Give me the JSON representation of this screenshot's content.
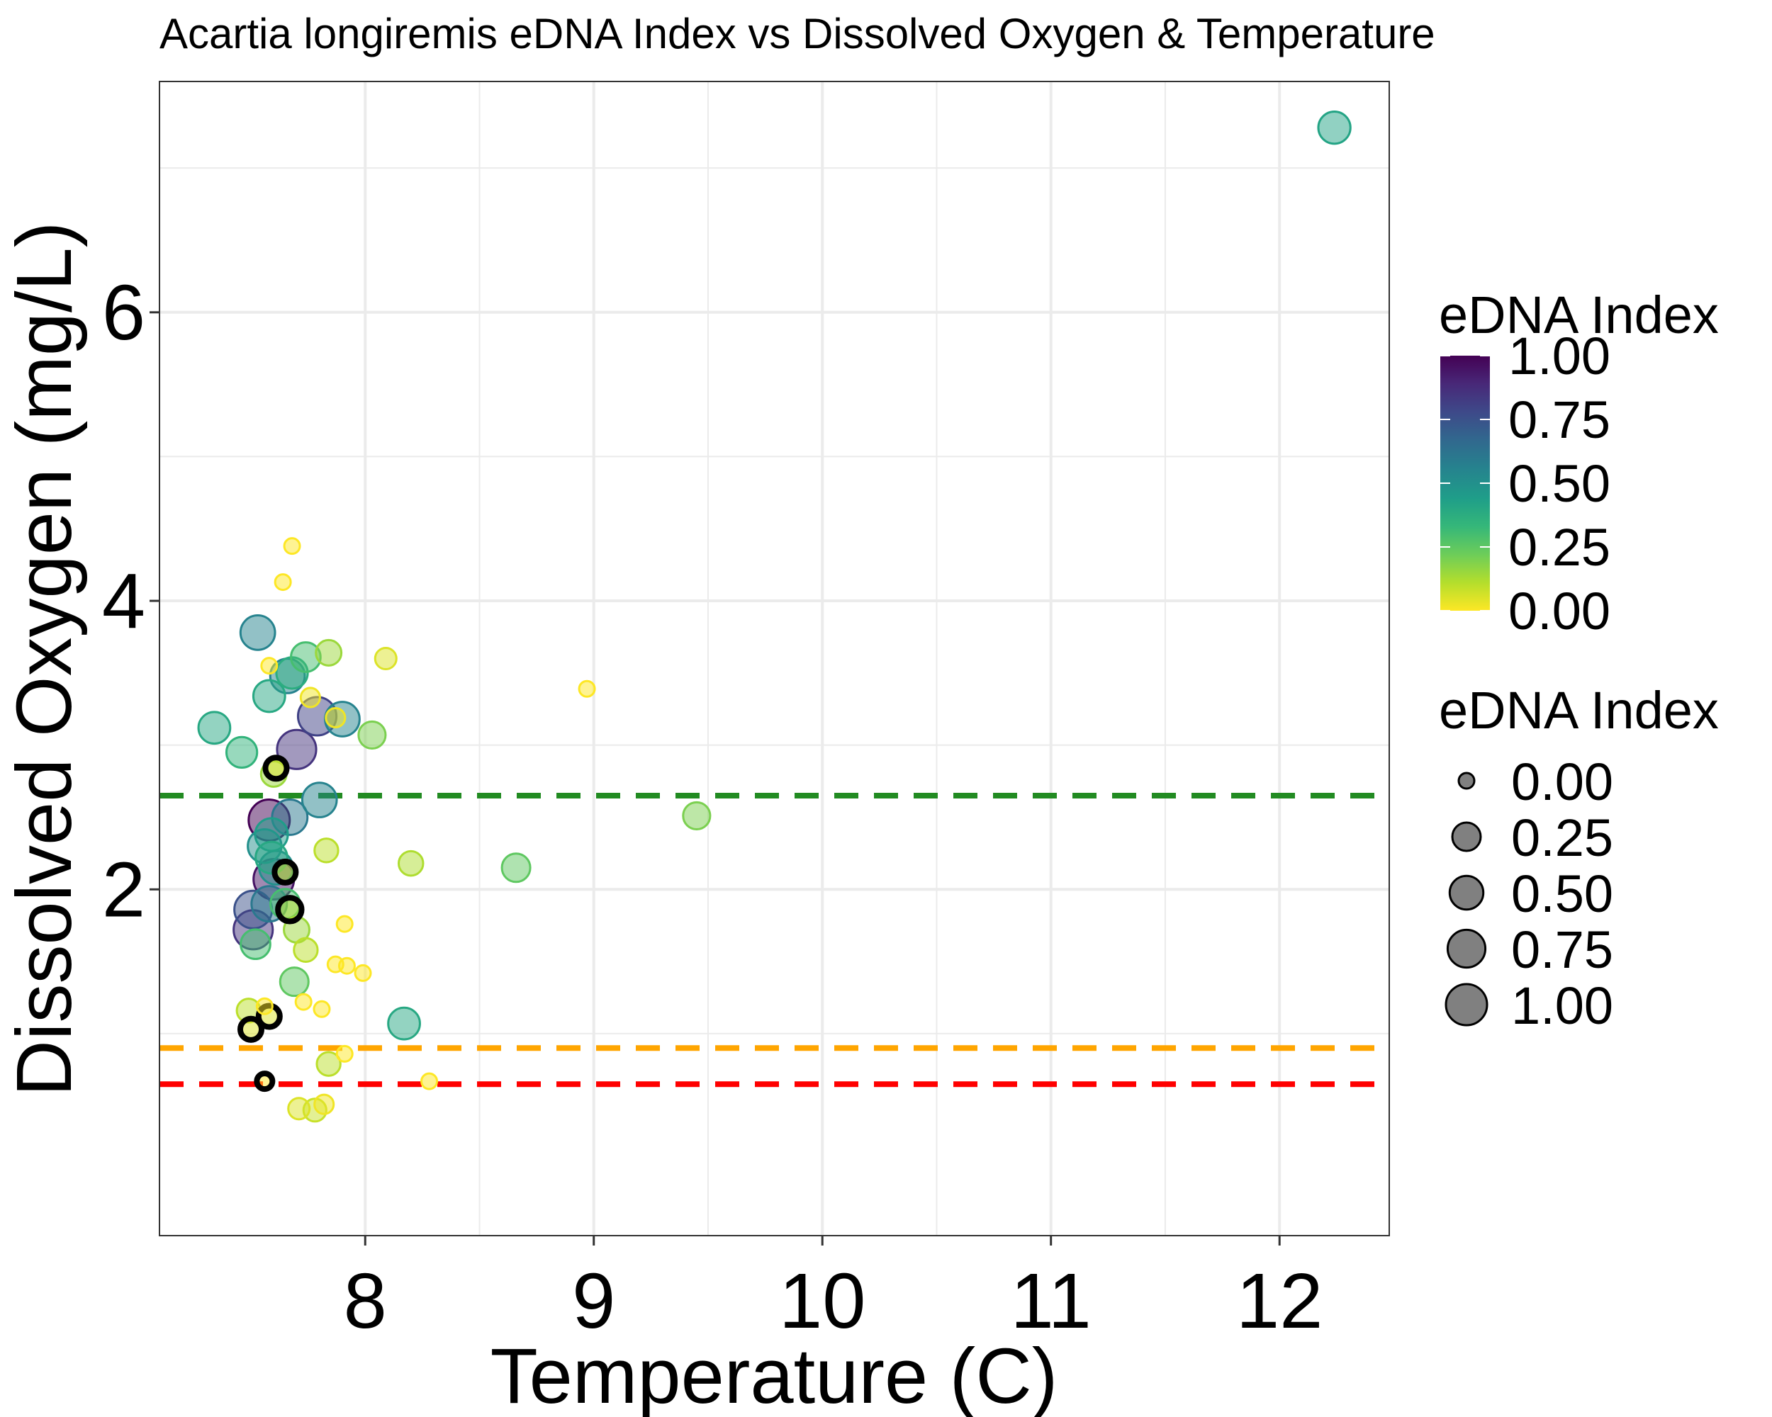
{
  "chart_data": {
    "type": "scatter",
    "title": "Acartia longiremis eDNA Index vs Dissolved Oxygen & Temperature",
    "xlabel": "Temperature (C)",
    "ylabel": "Dissolved Oxygen (mg/L)",
    "xlim": [
      7.1,
      12.48
    ],
    "ylim": [
      -0.4,
      7.6
    ],
    "x_ticks": [
      8,
      9,
      10,
      11,
      12
    ],
    "x_tick_labels": [
      "8",
      "9",
      "10",
      "11",
      "12"
    ],
    "y_ticks": [
      2,
      4,
      6
    ],
    "y_tick_labels": [
      "2",
      "4",
      "6"
    ],
    "x_minor": [
      8.5,
      9.5,
      10.5,
      11.5
    ],
    "y_minor": [
      1,
      3,
      5,
      7
    ],
    "grid": true,
    "reference_lines": [
      {
        "y": 2.65,
        "color": "#228B22",
        "style": "dashed"
      },
      {
        "y": 0.9,
        "color": "#FFA500",
        "style": "dashed"
      },
      {
        "y": 0.65,
        "color": "#FF0000",
        "style": "dashed"
      }
    ],
    "points": [
      {
        "x": 12.24,
        "y": 7.28,
        "v": 0.42
      },
      {
        "x": 7.68,
        "y": 4.38,
        "v": 0.0
      },
      {
        "x": 7.64,
        "y": 4.13,
        "v": 0.0
      },
      {
        "x": 7.53,
        "y": 3.78,
        "v": 0.55
      },
      {
        "x": 7.74,
        "y": 3.61,
        "v": 0.3
      },
      {
        "x": 7.84,
        "y": 3.64,
        "v": 0.15
      },
      {
        "x": 8.09,
        "y": 3.6,
        "v": 0.05
      },
      {
        "x": 7.58,
        "y": 3.55,
        "v": 0.0
      },
      {
        "x": 7.68,
        "y": 3.5,
        "v": 0.38
      },
      {
        "x": 7.66,
        "y": 3.48,
        "v": 0.55
      },
      {
        "x": 7.58,
        "y": 3.34,
        "v": 0.4
      },
      {
        "x": 7.76,
        "y": 3.33,
        "v": 0.02
      },
      {
        "x": 7.34,
        "y": 3.12,
        "v": 0.4
      },
      {
        "x": 7.79,
        "y": 3.2,
        "v": 0.8
      },
      {
        "x": 7.9,
        "y": 3.18,
        "v": 0.55
      },
      {
        "x": 7.87,
        "y": 3.19,
        "v": 0.02
      },
      {
        "x": 8.97,
        "y": 3.39,
        "v": 0.0
      },
      {
        "x": 8.03,
        "y": 3.07,
        "v": 0.2
      },
      {
        "x": 7.46,
        "y": 2.95,
        "v": 0.35
      },
      {
        "x": 7.7,
        "y": 2.97,
        "v": 0.85
      },
      {
        "x": 7.6,
        "y": 2.8,
        "v": 0.15
      },
      {
        "x": 7.61,
        "y": 2.84,
        "v": 0.05,
        "outline": true
      },
      {
        "x": 7.8,
        "y": 2.62,
        "v": 0.55
      },
      {
        "x": 7.67,
        "y": 2.5,
        "v": 0.6
      },
      {
        "x": 7.58,
        "y": 2.48,
        "v": 1.0
      },
      {
        "x": 7.59,
        "y": 2.38,
        "v": 0.45
      },
      {
        "x": 9.45,
        "y": 2.51,
        "v": 0.2
      },
      {
        "x": 7.56,
        "y": 2.3,
        "v": 0.5
      },
      {
        "x": 7.83,
        "y": 2.27,
        "v": 0.1
      },
      {
        "x": 7.59,
        "y": 2.22,
        "v": 0.4
      },
      {
        "x": 7.61,
        "y": 2.15,
        "v": 0.5
      },
      {
        "x": 7.65,
        "y": 2.12,
        "v": 0.05,
        "outline": true
      },
      {
        "x": 8.2,
        "y": 2.18,
        "v": 0.12
      },
      {
        "x": 8.66,
        "y": 2.15,
        "v": 0.25
      },
      {
        "x": 7.6,
        "y": 2.07,
        "v": 0.95
      },
      {
        "x": 7.51,
        "y": 1.86,
        "v": 0.75
      },
      {
        "x": 7.58,
        "y": 1.9,
        "v": 0.6
      },
      {
        "x": 7.65,
        "y": 1.9,
        "v": 0.3
      },
      {
        "x": 7.67,
        "y": 1.86,
        "v": 0.1,
        "outline": true
      },
      {
        "x": 7.51,
        "y": 1.72,
        "v": 0.85
      },
      {
        "x": 7.7,
        "y": 1.72,
        "v": 0.15
      },
      {
        "x": 7.91,
        "y": 1.76,
        "v": 0.0
      },
      {
        "x": 7.52,
        "y": 1.62,
        "v": 0.3
      },
      {
        "x": 7.74,
        "y": 1.58,
        "v": 0.1
      },
      {
        "x": 7.87,
        "y": 1.48,
        "v": 0.0
      },
      {
        "x": 7.92,
        "y": 1.47,
        "v": 0.0
      },
      {
        "x": 7.99,
        "y": 1.42,
        "v": 0.0
      },
      {
        "x": 7.69,
        "y": 1.36,
        "v": 0.25
      },
      {
        "x": 7.73,
        "y": 1.22,
        "v": 0.0
      },
      {
        "x": 7.81,
        "y": 1.17,
        "v": 0.0
      },
      {
        "x": 7.49,
        "y": 1.16,
        "v": 0.1
      },
      {
        "x": 7.56,
        "y": 1.19,
        "v": 0.0
      },
      {
        "x": 7.58,
        "y": 1.12,
        "v": 0.05,
        "outline": true
      },
      {
        "x": 7.5,
        "y": 1.03,
        "v": 0.05,
        "outline": true
      },
      {
        "x": 8.17,
        "y": 1.07,
        "v": 0.4
      },
      {
        "x": 7.91,
        "y": 0.86,
        "v": 0.0
      },
      {
        "x": 7.84,
        "y": 0.79,
        "v": 0.1
      },
      {
        "x": 7.56,
        "y": 0.67,
        "v": 0.0,
        "outline": true
      },
      {
        "x": 8.28,
        "y": 0.67,
        "v": 0.0
      },
      {
        "x": 7.71,
        "y": 0.48,
        "v": 0.05
      },
      {
        "x": 7.78,
        "y": 0.47,
        "v": 0.08
      },
      {
        "x": 7.82,
        "y": 0.51,
        "v": 0.02
      }
    ],
    "legend_color": {
      "title": "eDNA Index",
      "labels": [
        "1.00",
        "0.75",
        "0.50",
        "0.25",
        "0.00"
      ],
      "values": [
        1.0,
        0.75,
        0.5,
        0.25,
        0.0
      ]
    },
    "legend_size": {
      "title": "eDNA Index",
      "labels": [
        "0.00",
        "0.25",
        "0.50",
        "0.75",
        "1.00"
      ],
      "values": [
        0.0,
        0.25,
        0.5,
        0.75,
        1.0
      ]
    },
    "colors": {
      "viridis": [
        "#FDE725",
        "#B4DE2C",
        "#6DCD59",
        "#35B779",
        "#1F9E89",
        "#26828E",
        "#31688E",
        "#3E4989",
        "#482878",
        "#440154"
      ],
      "point_alpha": 0.5,
      "outline": "#000000",
      "grid": "#EBEBEB",
      "panel_border": "#333333"
    }
  }
}
